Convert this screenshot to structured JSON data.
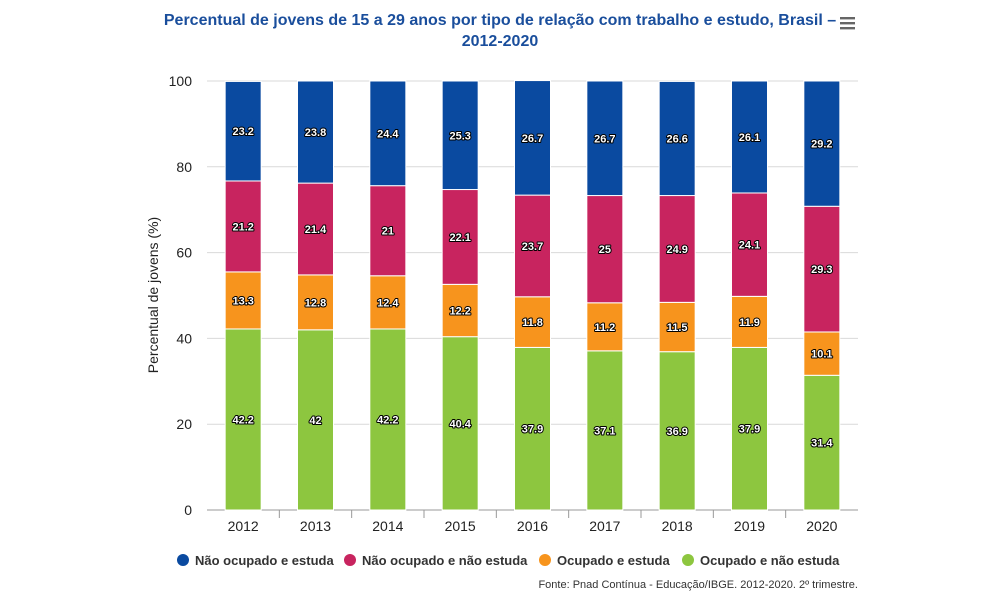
{
  "chart_data": {
    "type": "bar",
    "stacked": true,
    "title_line1": "Percentual de jovens de 15 a 29 anos por tipo de relação com trabalho e estudo, Brasil –",
    "title_line2": "2012-2020",
    "ylabel": "Percentual de jovens (%)",
    "xlabel": "",
    "ylim": [
      0,
      100
    ],
    "yticks": [
      "0",
      "20",
      "40",
      "60",
      "80",
      "100"
    ],
    "grid": true,
    "legend_position": "bottom",
    "categories": [
      "2012",
      "2013",
      "2014",
      "2015",
      "2016",
      "2017",
      "2018",
      "2019",
      "2020"
    ],
    "series": [
      {
        "name": "Ocupado e não estuda",
        "color": "#8dc63f",
        "values": [
          42.2,
          42,
          42.2,
          40.4,
          37.9,
          37.1,
          36.9,
          37.9,
          31.4
        ],
        "labels": [
          "42.2",
          "42",
          "42.2",
          "40.4",
          "37.9",
          "37.1",
          "36.9",
          "37.9",
          "31.4"
        ]
      },
      {
        "name": "Ocupado e estuda",
        "color": "#f7941d",
        "values": [
          13.3,
          12.8,
          12.4,
          12.2,
          11.8,
          11.2,
          11.5,
          11.9,
          10.1
        ],
        "labels": [
          "13.3",
          "12.8",
          "12.4",
          "12.2",
          "11.8",
          "11.2",
          "11.5",
          "11.9",
          "10.1"
        ]
      },
      {
        "name": "Não ocupado e não estuda",
        "color": "#c8245f",
        "values": [
          21.2,
          21.4,
          21,
          22.1,
          23.7,
          25,
          24.9,
          24.1,
          29.3
        ],
        "labels": [
          "21.2",
          "21.4",
          "21",
          "22.1",
          "23.7",
          "25",
          "24.9",
          "24.1",
          "29.3"
        ]
      },
      {
        "name": "Não ocupado e estuda",
        "color": "#0a4aa0",
        "values": [
          23.2,
          23.8,
          24.4,
          25.3,
          26.7,
          26.7,
          26.6,
          26.1,
          29.2
        ],
        "labels": [
          "23.2",
          "23.8",
          "24.4",
          "25.3",
          "26.7",
          "26.7",
          "26.6",
          "26.1",
          "29.2"
        ]
      }
    ],
    "legend_order": [
      3,
      2,
      1,
      0
    ],
    "source": "Fonte: Pnad Contínua - Educação/IBGE. 2012-2020. 2º trimestre.",
    "title_color": "#1a4e9c",
    "menu_icon": "hamburger-menu-icon"
  }
}
